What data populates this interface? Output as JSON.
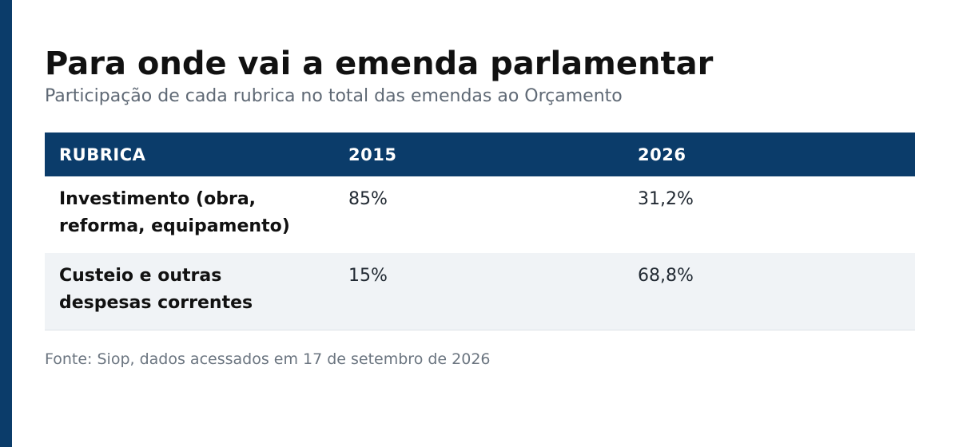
{
  "title": "Para onde vai a emenda parlamentar",
  "subtitle": "Participação de cada rubrica no total das emendas ao Orçamento",
  "source": "Fonte: Siop, dados acessados em 17 de setembro de 2026",
  "colors": {
    "accent": "#0b3c6a",
    "header_bg": "#0b3c6a",
    "header_text": "#ffffff",
    "stripe": "#f0f3f6"
  },
  "chart_data": {
    "type": "table",
    "columns": [
      "RUBRICA",
      "2015",
      "2026"
    ],
    "rows": [
      {
        "label": "Investimento (obra, reforma, equipamento)",
        "values": [
          "85%",
          "31,2%"
        ]
      },
      {
        "label": "Custeio e outras despesas correntes",
        "values": [
          "15%",
          "68,8%"
        ]
      }
    ]
  }
}
